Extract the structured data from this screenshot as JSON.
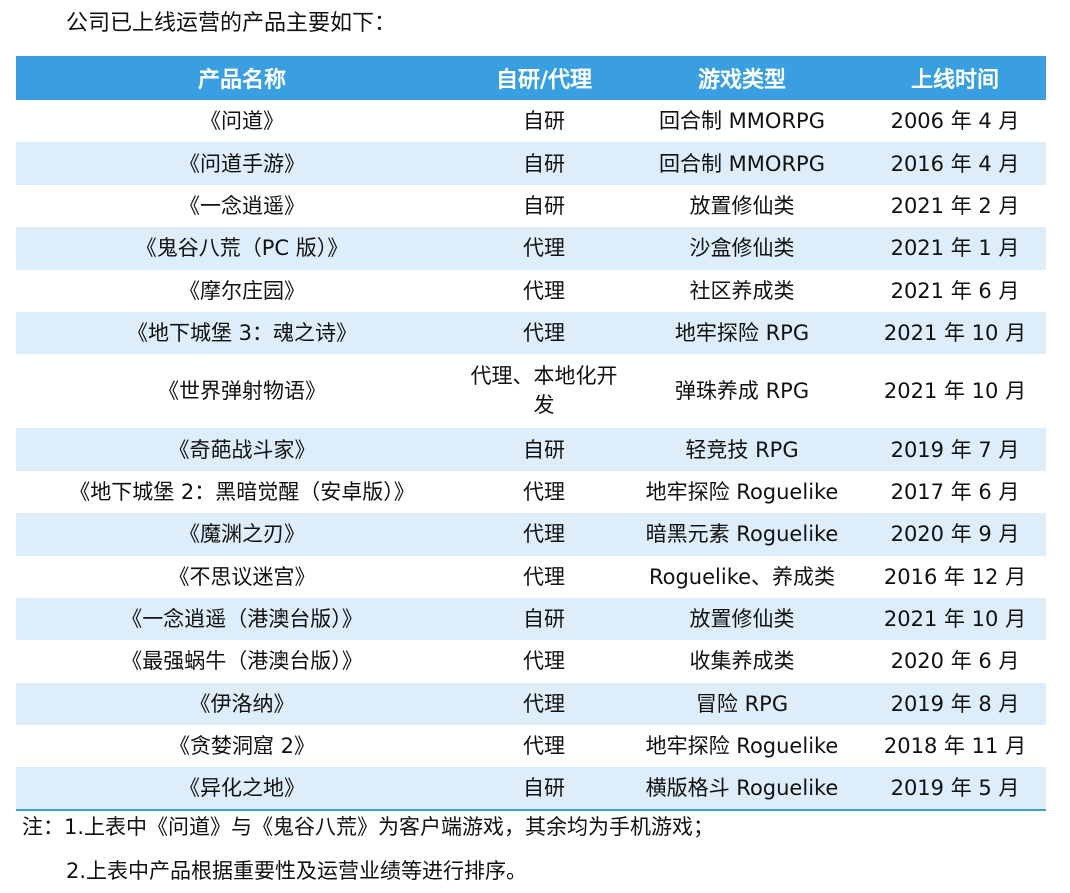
{
  "intro_text": "公司已上线运营的产品主要如下：",
  "table": {
    "headers": [
      "产品名称",
      "自研/代理",
      "游戏类型",
      "上线时间"
    ],
    "rows": [
      {
        "name": "《问道》",
        "dev": "自研",
        "type": "回合制 MMORPG",
        "date": "2006 年 4 月"
      },
      {
        "name": "《问道手游》",
        "dev": "自研",
        "type": "回合制 MMORPG",
        "date": "2016 年 4 月"
      },
      {
        "name": "《一念逍遥》",
        "dev": "自研",
        "type": "放置修仙类",
        "date": "2021 年 2 月"
      },
      {
        "name": "《鬼谷八荒（PC 版）》",
        "dev": "代理",
        "type": "沙盒修仙类",
        "date": "2021 年 1 月"
      },
      {
        "name": "《摩尔庄园》",
        "dev": "代理",
        "type": "社区养成类",
        "date": "2021 年 6 月"
      },
      {
        "name": "《地下城堡 3：魂之诗》",
        "dev": "代理",
        "type": "地牢探险 RPG",
        "date": "2021 年 10 月"
      },
      {
        "name": "《世界弹射物语》",
        "dev": "代理、本地化开发",
        "type": "弹珠养成 RPG",
        "date": "2021 年 10 月"
      },
      {
        "name": "《奇葩战斗家》",
        "dev": "自研",
        "type": "轻竞技 RPG",
        "date": "2019 年 7 月"
      },
      {
        "name": "《地下城堡 2：黑暗觉醒（安卓版）》",
        "dev": "代理",
        "type": "地牢探险 Roguelike",
        "date": "2017 年 6 月"
      },
      {
        "name": "《魔渊之刃》",
        "dev": "代理",
        "type": "暗黑元素 Roguelike",
        "date": "2020 年 9 月"
      },
      {
        "name": "《不思议迷宫》",
        "dev": "代理",
        "type": "Roguelike、养成类",
        "date": "2016 年 12 月"
      },
      {
        "name": "《一念逍遥（港澳台版）》",
        "dev": "自研",
        "type": "放置修仙类",
        "date": "2021 年 10 月"
      },
      {
        "name": "《最强蜗牛（港澳台版）》",
        "dev": "代理",
        "type": "收集养成类",
        "date": "2020 年 6 月"
      },
      {
        "name": "《伊洛纳》",
        "dev": "代理",
        "type": "冒险 RPG",
        "date": "2019 年 8 月"
      },
      {
        "name": "《贪婪洞窟 2》",
        "dev": "代理",
        "type": "地牢探险 Roguelike",
        "date": "2018 年 11 月"
      },
      {
        "name": "《异化之地》",
        "dev": "自研",
        "type": "横版格斗 Roguelike",
        "date": "2019 年 5 月"
      }
    ]
  },
  "notes": [
    "注：1.上表中《问道》与《鬼谷八荒》为客户端游戏，其余均为手机游戏；",
    "2.上表中产品根据重要性及运营业绩等进行排序。"
  ],
  "colors": {
    "header_bg": "#3a9fe0",
    "row_alt_bg": "#ddeefa",
    "text": "#111111"
  }
}
